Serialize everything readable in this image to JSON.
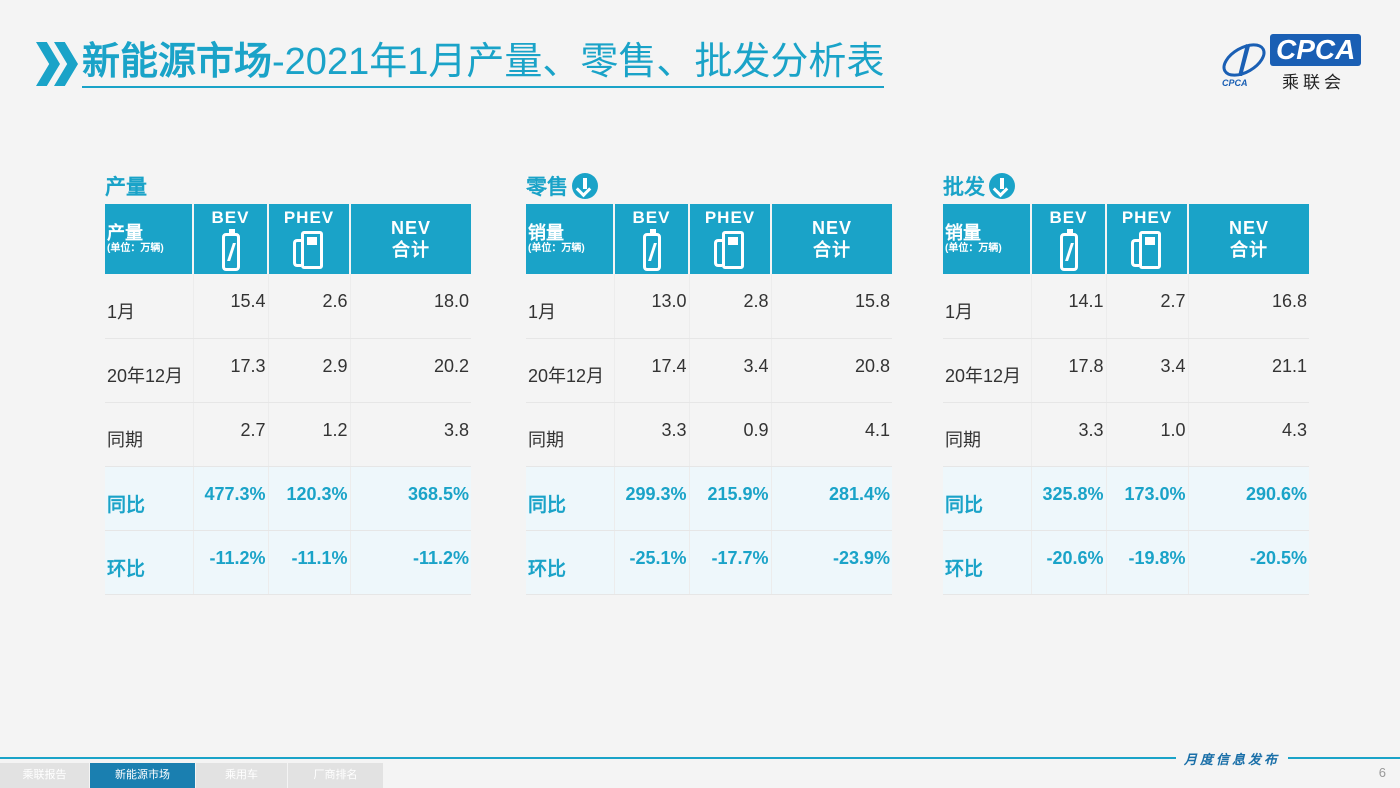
{
  "header": {
    "title_bold": "新能源市场",
    "title_rest": "-2021年1月产量、零售、批发分析表"
  },
  "logo": {
    "en": "CPCA",
    "cn": "乘联会",
    "sub": "CPCA"
  },
  "columns": {
    "unit_main_prod": "产量",
    "unit_main_sales": "销量",
    "unit_sub": "(单位：万辆)",
    "bev": "BEV",
    "phev": "PHEV",
    "nev_line1": "NEV",
    "nev_line2": "合计"
  },
  "row_labels": [
    "1月",
    "20年12月",
    "同期",
    "同比",
    "环比"
  ],
  "panels": [
    {
      "title": "产量",
      "rows": [
        [
          "15.4",
          "2.6",
          "18.0"
        ],
        [
          "17.3",
          "2.9",
          "20.2"
        ],
        [
          "2.7",
          "1.2",
          "3.8"
        ],
        [
          "477.3%",
          "120.3%",
          "368.5%"
        ],
        [
          "-11.2%",
          "-11.1%",
          "-11.2%"
        ]
      ]
    },
    {
      "title": "零售",
      "rows": [
        [
          "13.0",
          "2.8",
          "15.8"
        ],
        [
          "17.4",
          "3.4",
          "20.8"
        ],
        [
          "3.3",
          "0.9",
          "4.1"
        ],
        [
          "299.3%",
          "215.9%",
          "281.4%"
        ],
        [
          "-25.1%",
          "-17.7%",
          "-23.9%"
        ]
      ]
    },
    {
      "title": "批发",
      "rows": [
        [
          "14.1",
          "2.7",
          "16.8"
        ],
        [
          "17.8",
          "3.4",
          "21.1"
        ],
        [
          "3.3",
          "1.0",
          "4.3"
        ],
        [
          "325.8%",
          "173.0%",
          "290.6%"
        ],
        [
          "-20.6%",
          "-19.8%",
          "-20.5%"
        ]
      ]
    }
  ],
  "footer": {
    "tabs": [
      "乘联报告",
      "新能源市场",
      "乘用车",
      "厂商排名"
    ],
    "motto": "月度信息发布",
    "page": "6"
  },
  "colors": {
    "accent": "#1aa3c8",
    "footer_active": "#1a7fb0"
  }
}
